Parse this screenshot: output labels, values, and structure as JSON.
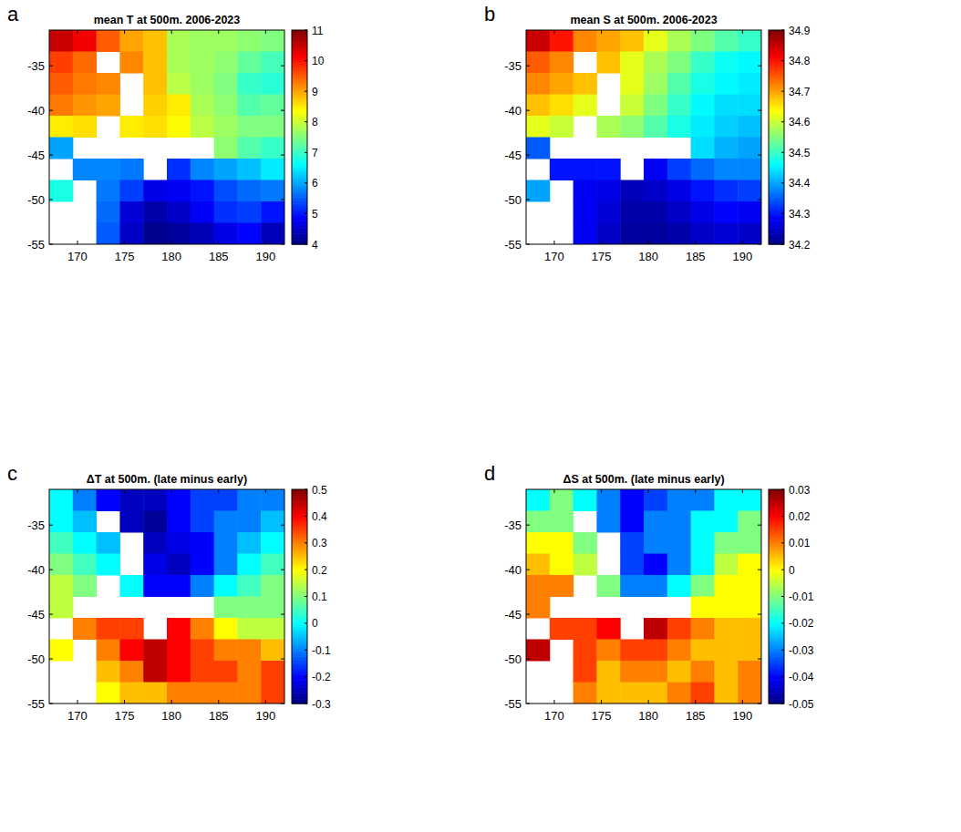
{
  "chart_data": [
    {
      "type": "heatmap",
      "label": "a",
      "title": "mean T at 500m. 2006-2023",
      "x": [
        168.25,
        170.75,
        173.25,
        175.75,
        178.25,
        180.75,
        183.25,
        185.75,
        188.25,
        190.75
      ],
      "y": [
        -32.2,
        -34.6,
        -37.0,
        -39.4,
        -41.8,
        -44.2,
        -46.6,
        -49.0,
        -51.4,
        -53.8
      ],
      "xlim": [
        167,
        192
      ],
      "ylim": [
        -55,
        -31
      ],
      "xticks": [
        170,
        175,
        180,
        185,
        190
      ],
      "yticks": [
        -35,
        -40,
        -45,
        -50,
        -55
      ],
      "values": [
        [
          10.5,
          10.2,
          9.5,
          9.0,
          8.8,
          7.8,
          7.7,
          7.7,
          7.6,
          7.5
        ],
        [
          9.7,
          9.4,
          null,
          9.2,
          8.8,
          7.8,
          7.7,
          7.6,
          7.3,
          7.1
        ],
        [
          9.5,
          9.3,
          9.2,
          null,
          8.8,
          7.9,
          7.7,
          7.5,
          7.0,
          6.9
        ],
        [
          9.3,
          9.1,
          9.0,
          null,
          8.7,
          8.5,
          7.8,
          7.6,
          7.2,
          7.3
        ],
        [
          8.5,
          8.6,
          null,
          8.5,
          8.6,
          8.4,
          7.9,
          7.7,
          7.5,
          7.5
        ],
        [
          6.0,
          null,
          null,
          null,
          null,
          null,
          null,
          7.6,
          7.2,
          7.0
        ],
        [
          null,
          5.8,
          5.8,
          5.7,
          null,
          5.2,
          5.8,
          6.0,
          6.2,
          6.5
        ],
        [
          6.8,
          null,
          5.7,
          5.3,
          4.7,
          4.8,
          5.0,
          5.4,
          5.6,
          5.7
        ],
        [
          null,
          null,
          5.6,
          4.6,
          4.3,
          4.5,
          4.8,
          5.2,
          5.3,
          5.0
        ],
        [
          null,
          null,
          5.5,
          4.5,
          4.1,
          4.2,
          4.4,
          4.7,
          4.9,
          4.4
        ]
      ],
      "clim": [
        4,
        11
      ],
      "cticks": [
        4,
        5,
        6,
        7,
        8,
        9,
        10,
        11
      ]
    },
    {
      "type": "heatmap",
      "label": "b",
      "title": "mean S at 500m. 2006-2023",
      "x": [
        168.25,
        170.75,
        173.25,
        175.75,
        178.25,
        180.75,
        183.25,
        185.75,
        188.25,
        190.75
      ],
      "y": [
        -32.2,
        -34.6,
        -37.0,
        -39.4,
        -41.8,
        -44.2,
        -46.6,
        -49.0,
        -51.4,
        -53.8
      ],
      "xlim": [
        167,
        192
      ],
      "ylim": [
        -55,
        -31
      ],
      "xticks": [
        170,
        175,
        180,
        185,
        190
      ],
      "yticks": [
        -35,
        -40,
        -45,
        -50,
        -55
      ],
      "values": [
        [
          34.85,
          34.8,
          34.72,
          34.7,
          34.68,
          34.62,
          34.58,
          34.55,
          34.52,
          34.5
        ],
        [
          34.75,
          34.72,
          null,
          34.68,
          34.62,
          34.58,
          34.55,
          34.5,
          34.47,
          34.46
        ],
        [
          34.72,
          34.7,
          34.68,
          null,
          34.62,
          34.57,
          34.52,
          34.48,
          34.46,
          34.45
        ],
        [
          34.68,
          34.66,
          34.62,
          null,
          34.6,
          34.55,
          34.5,
          34.46,
          34.44,
          34.44
        ],
        [
          34.62,
          34.6,
          null,
          34.58,
          34.56,
          34.52,
          34.48,
          34.45,
          34.43,
          34.42
        ],
        [
          34.35,
          null,
          null,
          null,
          null,
          null,
          null,
          34.44,
          34.41,
          34.4
        ],
        [
          null,
          34.3,
          34.3,
          34.3,
          null,
          34.28,
          34.33,
          34.36,
          34.38,
          34.38
        ],
        [
          34.4,
          null,
          34.28,
          34.27,
          34.24,
          34.25,
          34.27,
          34.3,
          34.32,
          34.33
        ],
        [
          null,
          null,
          34.28,
          34.26,
          34.23,
          34.23,
          34.25,
          34.27,
          34.29,
          34.28
        ],
        [
          null,
          null,
          34.28,
          34.25,
          34.22,
          34.22,
          34.23,
          34.25,
          34.26,
          34.25
        ]
      ],
      "clim": [
        34.2,
        34.9
      ],
      "cticks": [
        34.2,
        34.3,
        34.4,
        34.5,
        34.6,
        34.7,
        34.8,
        34.9
      ]
    },
    {
      "type": "heatmap",
      "label": "c",
      "title": "ΔT at 500m. (late minus early)",
      "x": [
        168.25,
        170.75,
        173.25,
        175.75,
        178.25,
        180.75,
        183.25,
        185.75,
        188.25,
        190.75
      ],
      "y": [
        -32.2,
        -34.6,
        -37.0,
        -39.4,
        -41.8,
        -44.2,
        -46.6,
        -49.0,
        -51.4,
        -53.8
      ],
      "xlim": [
        167,
        192
      ],
      "ylim": [
        -55,
        -31
      ],
      "xticks": [
        170,
        175,
        180,
        185,
        190
      ],
      "yticks": [
        -35,
        -40,
        -45,
        -50,
        -55
      ],
      "values": [
        [
          0.0,
          -0.1,
          -0.2,
          -0.25,
          -0.25,
          -0.2,
          -0.15,
          -0.15,
          -0.1,
          -0.1
        ],
        [
          0.0,
          -0.05,
          null,
          -0.25,
          -0.28,
          -0.2,
          -0.15,
          -0.1,
          -0.1,
          -0.05
        ],
        [
          0.05,
          0.0,
          -0.05,
          null,
          -0.25,
          -0.22,
          -0.2,
          -0.1,
          -0.05,
          0.0
        ],
        [
          0.1,
          0.05,
          0.0,
          null,
          -0.22,
          -0.25,
          -0.2,
          -0.1,
          0.0,
          0.05
        ],
        [
          0.15,
          0.1,
          null,
          0.0,
          -0.2,
          -0.2,
          -0.1,
          0.0,
          0.05,
          0.1
        ],
        [
          0.15,
          null,
          null,
          null,
          null,
          null,
          null,
          0.1,
          0.1,
          0.1
        ],
        [
          null,
          0.3,
          0.35,
          0.35,
          null,
          0.4,
          0.3,
          0.2,
          0.15,
          0.15
        ],
        [
          0.2,
          null,
          0.3,
          0.4,
          0.45,
          0.4,
          0.35,
          0.3,
          0.3,
          0.25
        ],
        [
          null,
          null,
          0.25,
          0.3,
          0.45,
          0.4,
          0.35,
          0.35,
          0.3,
          0.35
        ],
        [
          null,
          null,
          0.2,
          0.25,
          0.25,
          0.3,
          0.3,
          0.3,
          0.3,
          0.35
        ]
      ],
      "clim": [
        -0.3,
        0.5
      ],
      "cticks": [
        -0.3,
        -0.2,
        -0.1,
        0,
        0.1,
        0.2,
        0.3,
        0.4,
        0.5
      ]
    },
    {
      "type": "heatmap",
      "label": "d",
      "title": "ΔS at 500m. (late minus early)",
      "x": [
        168.25,
        170.75,
        173.25,
        175.75,
        178.25,
        180.75,
        183.25,
        185.75,
        188.25,
        190.75
      ],
      "y": [
        -32.2,
        -34.6,
        -37.0,
        -39.4,
        -41.8,
        -44.2,
        -46.6,
        -49.0,
        -51.4,
        -53.8
      ],
      "xlim": [
        167,
        192
      ],
      "ylim": [
        -55,
        -31
      ],
      "xticks": [
        170,
        175,
        180,
        185,
        190
      ],
      "yticks": [
        -35,
        -40,
        -45,
        -50,
        -55
      ],
      "values": [
        [
          -0.02,
          -0.01,
          -0.02,
          -0.03,
          -0.04,
          -0.035,
          -0.03,
          -0.03,
          -0.02,
          -0.02
        ],
        [
          -0.01,
          -0.01,
          null,
          -0.03,
          -0.04,
          -0.03,
          -0.03,
          -0.02,
          -0.02,
          -0.01
        ],
        [
          0.0,
          0.0,
          -0.01,
          null,
          -0.035,
          -0.03,
          -0.03,
          -0.02,
          -0.01,
          -0.01
        ],
        [
          0.005,
          0.0,
          -0.005,
          null,
          -0.035,
          -0.04,
          -0.03,
          -0.02,
          -0.005,
          0.0
        ],
        [
          0.01,
          0.01,
          null,
          -0.01,
          -0.03,
          -0.03,
          -0.02,
          -0.01,
          0.0,
          0.0
        ],
        [
          0.01,
          null,
          null,
          null,
          null,
          null,
          null,
          0.0,
          0.0,
          0.0
        ],
        [
          null,
          0.015,
          0.015,
          0.02,
          null,
          0.025,
          0.015,
          0.01,
          0.005,
          0.005
        ],
        [
          0.025,
          null,
          0.015,
          0.01,
          0.015,
          0.015,
          0.01,
          0.005,
          0.005,
          0.005
        ],
        [
          null,
          null,
          0.015,
          0.005,
          0.01,
          0.01,
          0.005,
          0.01,
          0.005,
          0.01
        ],
        [
          null,
          null,
          0.01,
          0.005,
          0.005,
          0.005,
          0.01,
          0.015,
          0.005,
          0.01
        ]
      ],
      "clim": [
        -0.05,
        0.03
      ],
      "cticks": [
        -0.05,
        -0.04,
        -0.03,
        -0.02,
        -0.01,
        0,
        0.01,
        0.02,
        0.03
      ]
    }
  ]
}
